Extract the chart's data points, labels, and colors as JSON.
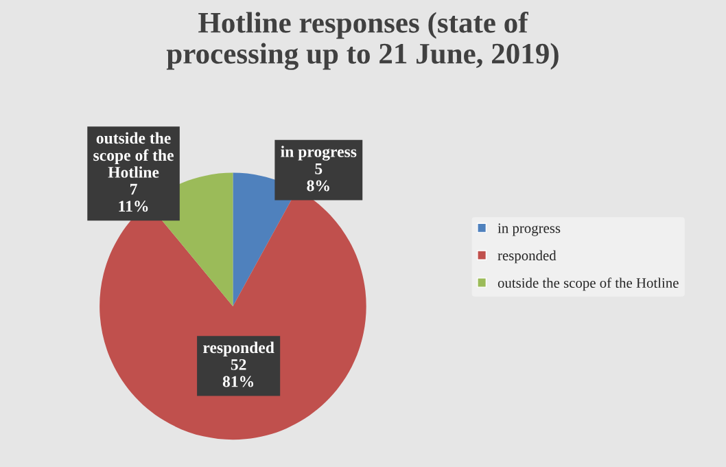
{
  "chart_data": {
    "type": "pie",
    "title": "Hotline responses (state of processing up to 21 June, 2019)",
    "categories": [
      "in progress",
      "responded",
      "outside the scope of the Hotline"
    ],
    "values": [
      8,
      81,
      11
    ],
    "value_labels": [
      "5\n8%",
      "52\n81%",
      "7\n11%"
    ],
    "colors": [
      "#4f81bd",
      "#c0504d",
      "#9bbb59"
    ],
    "legend": "right"
  }
}
